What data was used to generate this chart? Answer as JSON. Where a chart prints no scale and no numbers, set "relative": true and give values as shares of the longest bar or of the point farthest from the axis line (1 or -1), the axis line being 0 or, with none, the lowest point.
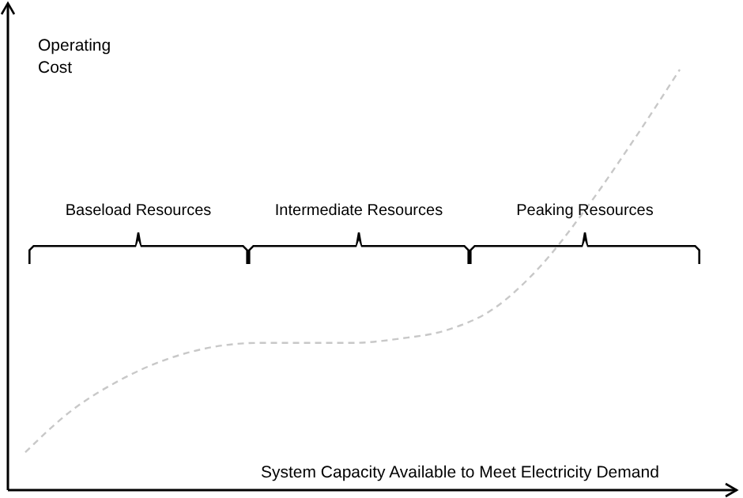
{
  "chart_data": {
    "type": "line",
    "relative": true,
    "xlabel": "System Capacity Available to Meet Electricity Demand",
    "ylabel": "Operating Cost",
    "categories": [
      null,
      null,
      null,
      null,
      null,
      null,
      null,
      null,
      null,
      null,
      null,
      null,
      null,
      null,
      null
    ],
    "series": [
      {
        "color": "#c8c8c8",
        "values": [
          0.09,
          0.19,
          0.26,
          0.31,
          0.34,
          0.35,
          0.35,
          0.35,
          0.36,
          0.38,
          0.43,
          0.53,
          0.67,
          0.83,
          1
        ]
      }
    ],
    "line_style": "dashed",
    "marker": "none",
    "annotations": [
      "Baseload Resources",
      "Intermediate Resources",
      "Peaking Resources"
    ]
  }
}
